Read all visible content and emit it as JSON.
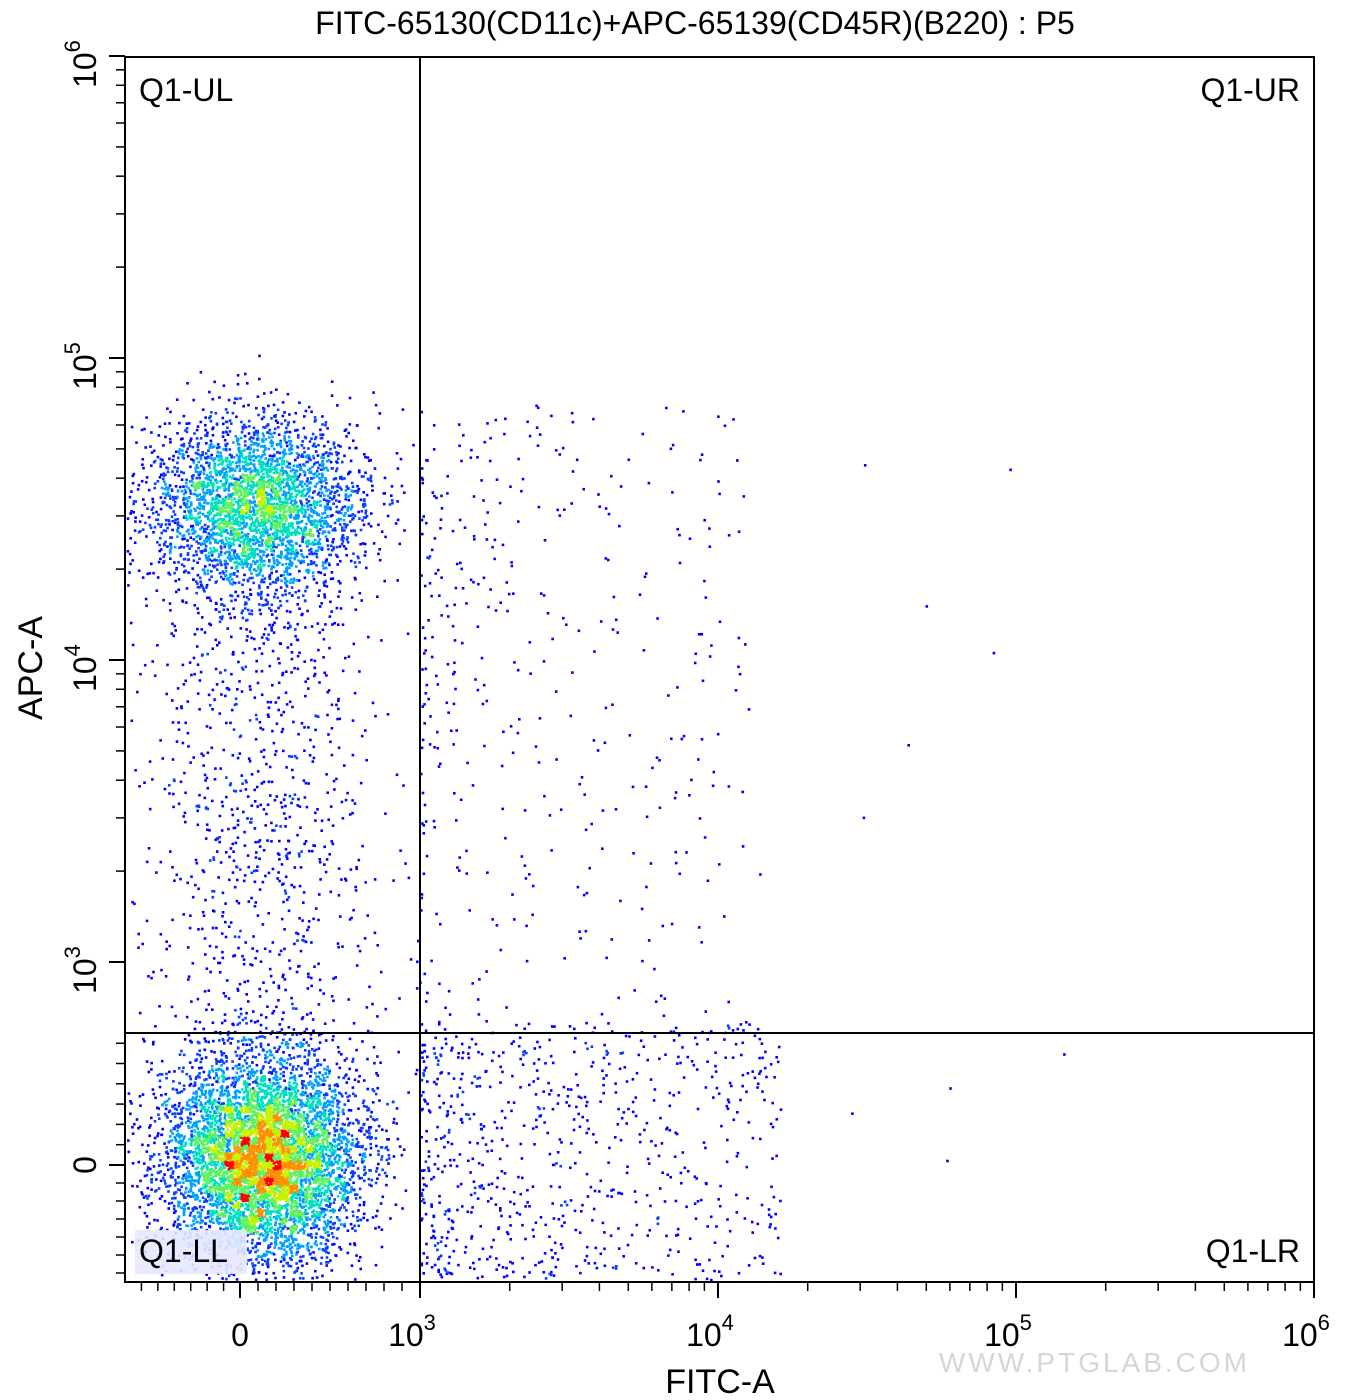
{
  "chart_data": {
    "type": "scatter",
    "title": "FITC-65130(CD11c)+APC-65139(CD45R)(B220) : P5",
    "xlabel": "FITC-A",
    "ylabel": "APC-A",
    "x_scale": "biexponential",
    "y_scale": "biexponential",
    "xlim": [
      -700,
      1000000
    ],
    "ylim": [
      -650,
      1000000
    ],
    "x_ticks": [
      {
        "value": 0,
        "base": "0",
        "exp": ""
      },
      {
        "value": 1000,
        "base": "10",
        "exp": "3"
      },
      {
        "value": 10000,
        "base": "10",
        "exp": "4"
      },
      {
        "value": 100000,
        "base": "10",
        "exp": "5"
      },
      {
        "value": 1000000,
        "base": "10",
        "exp": "6"
      }
    ],
    "y_ticks": [
      {
        "value": 0,
        "base": "0",
        "exp": ""
      },
      {
        "value": 1000,
        "base": "10",
        "exp": "3"
      },
      {
        "value": 10000,
        "base": "10",
        "exp": "4"
      },
      {
        "value": 100000,
        "base": "10",
        "exp": "5"
      },
      {
        "value": 1000000,
        "base": "10",
        "exp": "6"
      }
    ],
    "gates": {
      "x_threshold": 1000,
      "y_threshold": 650
    },
    "quadrants": [
      {
        "id": "ul",
        "label": "Q1-UL",
        "position": "top-left"
      },
      {
        "id": "ur",
        "label": "Q1-UR",
        "position": "top-right"
      },
      {
        "id": "ll",
        "label": "Q1-LL",
        "position": "bottom-left"
      },
      {
        "id": "lr",
        "label": "Q1-LR",
        "position": "bottom-right"
      }
    ],
    "populations": [
      {
        "name": "",
        "quadrant": "ll",
        "center_x": 120,
        "center_y": 30,
        "peak_density": "high"
      },
      {
        "name": "",
        "quadrant": "ul",
        "center_x": 80,
        "center_y": 33000,
        "peak_density": "medium"
      }
    ],
    "density_colors": [
      "#0000ff",
      "#0a3cff",
      "#00a0ff",
      "#00e0c0",
      "#60f060",
      "#c8f000",
      "#ff9000",
      "#ff0000"
    ],
    "grid": false
  },
  "watermark": "WWW.PTGLAB.COM"
}
